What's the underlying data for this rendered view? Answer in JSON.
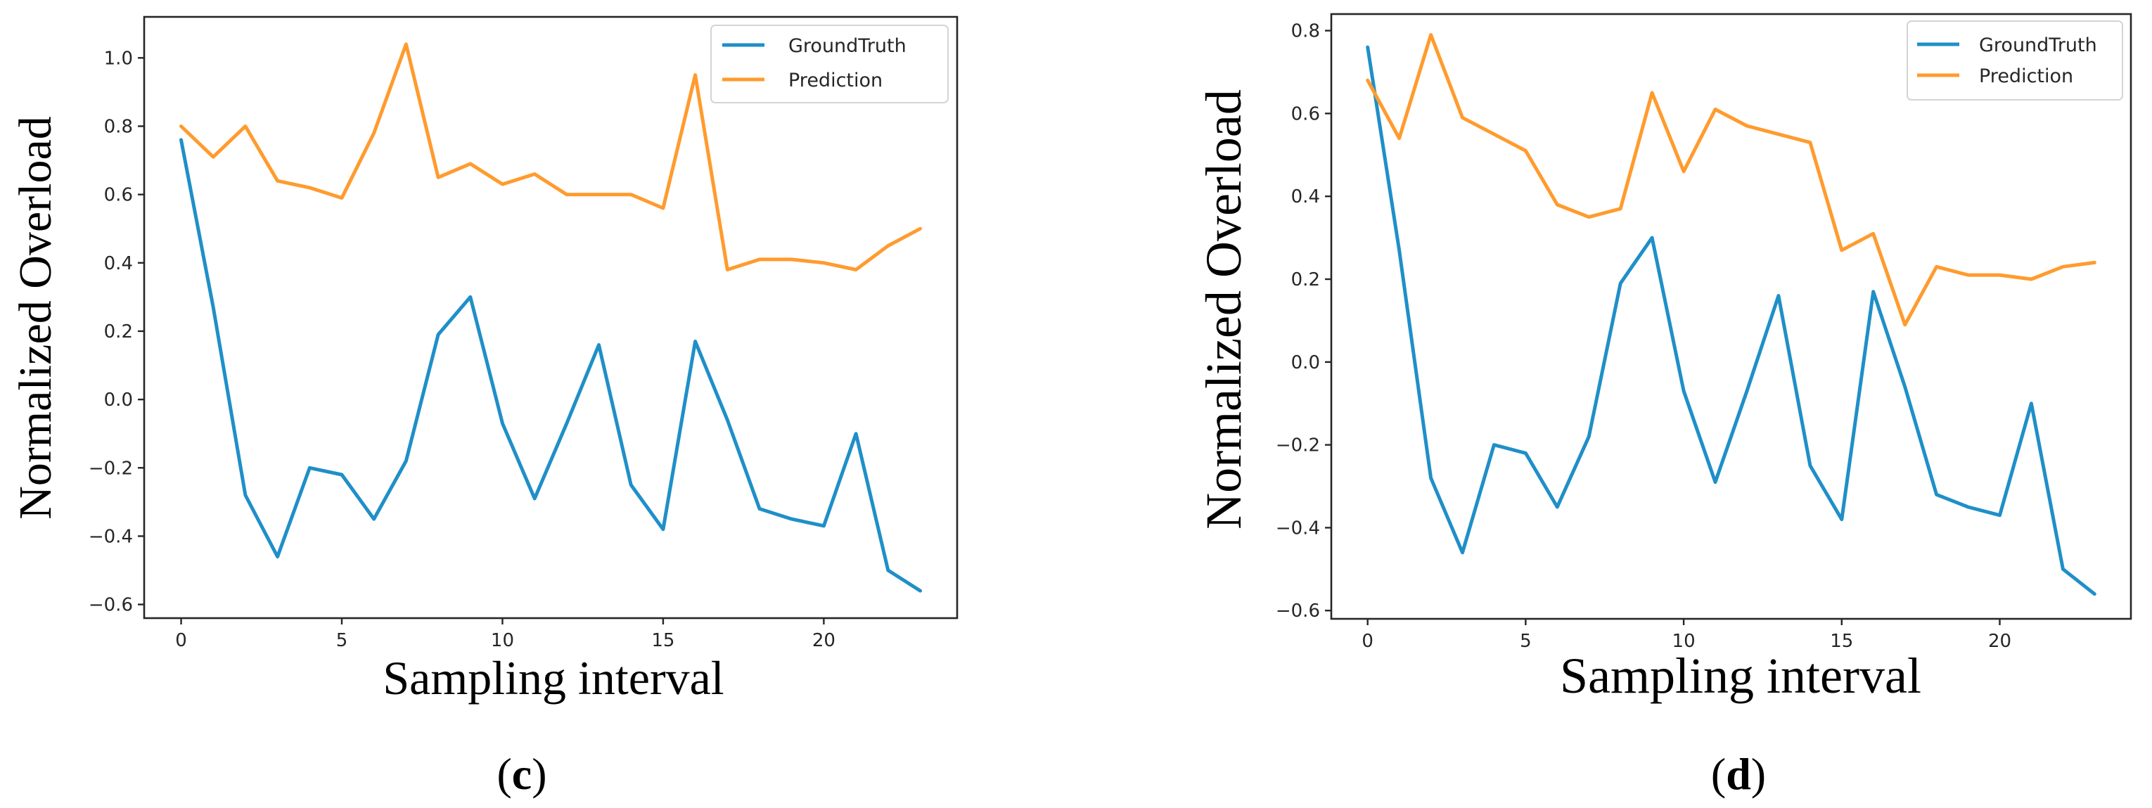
{
  "colors": {
    "ground_truth": "#1f8fc8",
    "prediction": "#ff9b2e"
  },
  "panels": [
    {
      "caption": {
        "open": "(",
        "letter": "c",
        "close": ")"
      }
    },
    {
      "caption": {
        "open": "(",
        "letter": "d",
        "close": ")"
      }
    }
  ],
  "chart_data": [
    {
      "type": "line",
      "title": "",
      "xlabel": "Sampling interval",
      "ylabel": "Normalized Overload",
      "x": [
        0,
        1,
        2,
        3,
        4,
        5,
        6,
        7,
        8,
        9,
        10,
        11,
        12,
        13,
        14,
        15,
        16,
        17,
        18,
        19,
        20,
        21,
        22,
        23
      ],
      "xlim": [
        -1.15,
        24.15
      ],
      "ylim": [
        -0.64,
        1.12
      ],
      "xticks": [
        0,
        5,
        10,
        15,
        20
      ],
      "xtick_labels": [
        "0",
        "5",
        "10",
        "15",
        "20"
      ],
      "yticks": [
        -0.6,
        -0.4,
        -0.2,
        0.0,
        0.2,
        0.4,
        0.6,
        0.8,
        1.0
      ],
      "ytick_labels": [
        "−0.6",
        "−0.4",
        "−0.2",
        "0.0",
        "0.2",
        "0.4",
        "0.6",
        "0.8",
        "1.0"
      ],
      "legend": "top-right",
      "series": [
        {
          "name": "GroundTruth",
          "color_key": "ground_truth",
          "values": [
            0.76,
            0.27,
            -0.28,
            -0.46,
            -0.2,
            -0.22,
            -0.35,
            -0.18,
            0.19,
            0.3,
            -0.07,
            -0.29,
            -0.07,
            0.16,
            -0.25,
            -0.38,
            0.17,
            -0.06,
            -0.32,
            -0.35,
            -0.37,
            -0.1,
            -0.5,
            -0.56
          ]
        },
        {
          "name": "Prediction",
          "color_key": "prediction",
          "values": [
            0.8,
            0.71,
            0.8,
            0.64,
            0.62,
            0.59,
            0.78,
            1.04,
            0.65,
            0.69,
            0.63,
            0.66,
            0.6,
            0.6,
            0.6,
            0.56,
            0.95,
            0.38,
            0.41,
            0.41,
            0.4,
            0.38,
            0.45,
            0.5
          ]
        }
      ]
    },
    {
      "type": "line",
      "title": "",
      "xlabel": "Sampling interval",
      "ylabel": "Normalized Overload",
      "x": [
        0,
        1,
        2,
        3,
        4,
        5,
        6,
        7,
        8,
        9,
        10,
        11,
        12,
        13,
        14,
        15,
        16,
        17,
        18,
        19,
        20,
        21,
        22,
        23
      ],
      "xlim": [
        -1.15,
        24.15
      ],
      "ylim": [
        -0.62,
        0.84
      ],
      "xticks": [
        0,
        5,
        10,
        15,
        20
      ],
      "xtick_labels": [
        "0",
        "5",
        "10",
        "15",
        "20"
      ],
      "yticks": [
        -0.6,
        -0.4,
        -0.2,
        0.0,
        0.2,
        0.4,
        0.6,
        0.8
      ],
      "ytick_labels": [
        "−0.6",
        "−0.4",
        "−0.2",
        "0.0",
        "0.2",
        "0.4",
        "0.6",
        "0.8"
      ],
      "legend": "top-right",
      "series": [
        {
          "name": "GroundTruth",
          "color_key": "ground_truth",
          "values": [
            0.76,
            0.27,
            -0.28,
            -0.46,
            -0.2,
            -0.22,
            -0.35,
            -0.18,
            0.19,
            0.3,
            -0.07,
            -0.29,
            -0.07,
            0.16,
            -0.25,
            -0.38,
            0.17,
            -0.06,
            -0.32,
            -0.35,
            -0.37,
            -0.1,
            -0.5,
            -0.56
          ]
        },
        {
          "name": "Prediction",
          "color_key": "prediction",
          "values": [
            0.68,
            0.54,
            0.79,
            0.59,
            0.55,
            0.51,
            0.38,
            0.35,
            0.37,
            0.65,
            0.46,
            0.61,
            0.57,
            0.55,
            0.53,
            0.27,
            0.31,
            0.09,
            0.23,
            0.21,
            0.21,
            0.2,
            0.23,
            0.24
          ]
        }
      ]
    }
  ]
}
